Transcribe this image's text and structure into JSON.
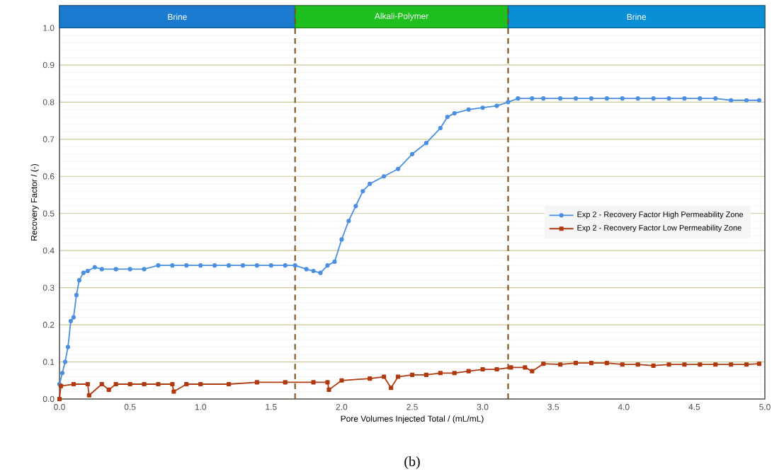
{
  "chart_data": {
    "type": "line",
    "xlabel": "Pore Volumes Injected Total / (mL/mL)",
    "ylabel": "Recovery Factor / (-)",
    "xlim": [
      0,
      5
    ],
    "xticks": [
      {
        "value": 0,
        "label": "0.0"
      },
      0.5,
      {
        "value": 1,
        "label": "1.0"
      },
      1.5,
      {
        "value": 2,
        "label": "2.0"
      },
      2.5,
      {
        "value": 3,
        "label": "3.0"
      },
      3.5,
      {
        "value": 4,
        "label": "4.0"
      },
      4.5,
      {
        "value": 5,
        "label": "5.0"
      }
    ],
    "ylim": [
      0,
      1.06
    ],
    "yticks": [
      {
        "value": 0,
        "label": "0.0"
      },
      0.1,
      0.2,
      0.3,
      0.4,
      0.5,
      0.6,
      0.7,
      0.8,
      0.9,
      {
        "value": 1,
        "label": "1.0"
      }
    ],
    "grid": "y",
    "legend": "right",
    "bands": [
      {
        "axis": "x",
        "from": 0,
        "to": 1.67,
        "label": "Brine",
        "color": "#1a7bd0"
      },
      {
        "axis": "x",
        "from": 1.67,
        "to": 3.18,
        "label": "Alkali-Polymer",
        "color": "#1fbf1f"
      },
      {
        "axis": "x",
        "from": 3.18,
        "to": 5,
        "label": "Brine",
        "color": "#0a8ed6"
      }
    ],
    "ref_lines": [
      {
        "axis": "x",
        "value": 1.67,
        "color": "#7a4a10",
        "line_style": "dashed"
      },
      {
        "axis": "x",
        "value": 3.18,
        "color": "#7a4a10",
        "line_style": "dashed"
      }
    ],
    "annotations": [
      "(b)"
    ],
    "series": [
      {
        "name": "Exp 2 - Recovery Factor High Permeability Zone",
        "color": "#4a8fe0",
        "marker": "circle",
        "x": [
          0,
          0.02,
          0.04,
          0.06,
          0.08,
          0.1,
          0.12,
          0.14,
          0.17,
          0.2,
          0.25,
          0.3,
          0.4,
          0.5,
          0.6,
          0.7,
          0.8,
          0.9,
          1.0,
          1.1,
          1.2,
          1.3,
          1.4,
          1.5,
          1.6,
          1.67,
          1.75,
          1.8,
          1.85,
          1.9,
          1.95,
          2.0,
          2.05,
          2.1,
          2.15,
          2.2,
          2.3,
          2.4,
          2.5,
          2.6,
          2.7,
          2.75,
          2.8,
          2.9,
          3.0,
          3.1,
          3.18,
          3.25,
          3.35,
          3.43,
          3.55,
          3.66,
          3.77,
          3.88,
          3.99,
          4.1,
          4.21,
          4.32,
          4.43,
          4.54,
          4.65,
          4.76,
          4.87,
          4.96
        ],
        "values": [
          0.04,
          0.07,
          0.1,
          0.14,
          0.21,
          0.22,
          0.28,
          0.32,
          0.34,
          0.345,
          0.355,
          0.35,
          0.35,
          0.35,
          0.35,
          0.36,
          0.36,
          0.36,
          0.36,
          0.36,
          0.36,
          0.36,
          0.36,
          0.36,
          0.36,
          0.36,
          0.35,
          0.345,
          0.34,
          0.36,
          0.37,
          0.43,
          0.48,
          0.52,
          0.56,
          0.58,
          0.6,
          0.62,
          0.66,
          0.69,
          0.73,
          0.76,
          0.77,
          0.78,
          0.785,
          0.79,
          0.8,
          0.81,
          0.81,
          0.81,
          0.81,
          0.81,
          0.81,
          0.81,
          0.81,
          0.81,
          0.81,
          0.81,
          0.81,
          0.81,
          0.81,
          0.805,
          0.805,
          0.805
        ]
      },
      {
        "name": "Exp 2 - Recovery Factor Low Permeability Zone",
        "color": "#b03a10",
        "marker": "square",
        "x": [
          0,
          0.01,
          0.1,
          0.2,
          0.21,
          0.3,
          0.35,
          0.4,
          0.5,
          0.6,
          0.7,
          0.8,
          0.81,
          0.9,
          1.0,
          1.2,
          1.4,
          1.6,
          1.8,
          1.9,
          1.91,
          2.0,
          2.2,
          2.3,
          2.35,
          2.4,
          2.5,
          2.6,
          2.7,
          2.8,
          2.9,
          3.0,
          3.1,
          3.2,
          3.3,
          3.35,
          3.43,
          3.55,
          3.66,
          3.77,
          3.88,
          3.99,
          4.1,
          4.21,
          4.32,
          4.43,
          4.54,
          4.65,
          4.76,
          4.87,
          4.96
        ],
        "values": [
          0.0,
          0.035,
          0.04,
          0.04,
          0.01,
          0.04,
          0.025,
          0.04,
          0.04,
          0.04,
          0.04,
          0.04,
          0.02,
          0.04,
          0.04,
          0.04,
          0.045,
          0.045,
          0.045,
          0.045,
          0.025,
          0.05,
          0.055,
          0.06,
          0.03,
          0.06,
          0.065,
          0.065,
          0.07,
          0.07,
          0.075,
          0.08,
          0.08,
          0.085,
          0.085,
          0.075,
          0.095,
          0.093,
          0.097,
          0.097,
          0.097,
          0.093,
          0.093,
          0.09,
          0.093,
          0.093,
          0.093,
          0.093,
          0.093,
          0.093,
          0.095
        ]
      }
    ]
  }
}
